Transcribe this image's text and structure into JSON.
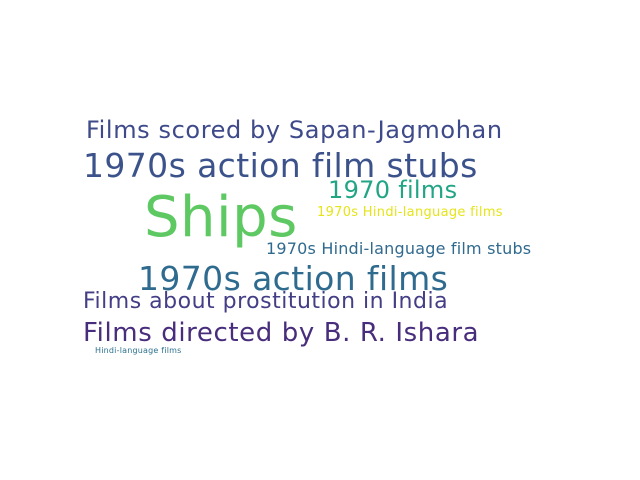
{
  "words": [
    {
      "text": "Films scored by Sapan-Jagmohan",
      "color": "#3e4a89"
    },
    {
      "text": "1970s action film stubs",
      "color": "#3b528b"
    },
    {
      "text": "1970 films",
      "color": "#21a585"
    },
    {
      "text": "Ships",
      "color": "#5ec962"
    },
    {
      "text": "1970s Hindi-language films",
      "color": "#e6e419"
    },
    {
      "text": "1970s Hindi-language film stubs",
      "color": "#306a8e"
    },
    {
      "text": "1970s action films",
      "color": "#2f6b8e"
    },
    {
      "text": "Films about prostitution in India",
      "color": "#433e85"
    },
    {
      "text": "Films directed by B. R. Ishara",
      "color": "#472d7b"
    },
    {
      "text": "Hindi-language films",
      "color": "#2c718e"
    }
  ]
}
